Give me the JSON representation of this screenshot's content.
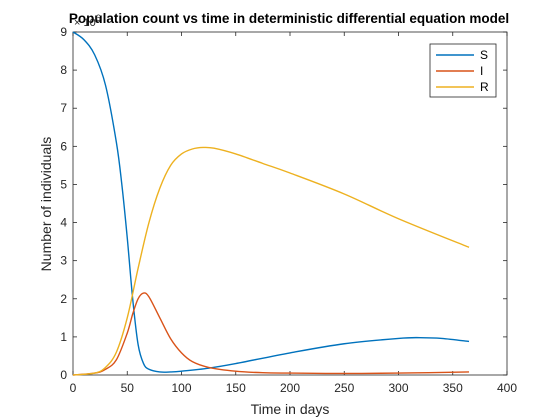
{
  "chart_data": {
    "type": "line",
    "title": "Population count vs time in deterministic differential equation model",
    "xlabel": "Time in days",
    "ylabel": "Number of individuals",
    "xlim": [
      0,
      400
    ],
    "ylim": [
      0,
      9
    ],
    "xticks": [
      0,
      50,
      100,
      150,
      200,
      250,
      300,
      350,
      400
    ],
    "yticks": [
      0,
      1,
      2,
      3,
      4,
      5,
      6,
      7,
      8,
      9
    ],
    "y_multiplier_text": "× 10",
    "y_multiplier_exponent": "6",
    "grid": false,
    "legend_position": "top-right",
    "series": [
      {
        "name": "S",
        "color": "#0072BD",
        "x": [
          0,
          10,
          20,
          30,
          40,
          45,
          50,
          55,
          60,
          65,
          70,
          80,
          90,
          100,
          125,
          150,
          200,
          250,
          300,
          320,
          340,
          365
        ],
        "y": [
          9.0,
          8.8,
          8.4,
          7.6,
          6.1,
          5.0,
          3.6,
          2.0,
          0.8,
          0.3,
          0.15,
          0.08,
          0.08,
          0.1,
          0.18,
          0.3,
          0.58,
          0.82,
          0.96,
          0.98,
          0.96,
          0.88
        ]
      },
      {
        "name": "I",
        "color": "#D95319",
        "x": [
          0,
          20,
          30,
          40,
          50,
          55,
          60,
          65,
          70,
          80,
          90,
          100,
          110,
          125,
          150,
          175,
          200,
          250,
          300,
          365
        ],
        "y": [
          0.0,
          0.05,
          0.15,
          0.4,
          1.1,
          1.6,
          2.0,
          2.15,
          2.05,
          1.5,
          0.95,
          0.58,
          0.35,
          0.2,
          0.1,
          0.06,
          0.05,
          0.04,
          0.05,
          0.08
        ]
      },
      {
        "name": "R",
        "color": "#EDB120",
        "x": [
          0,
          20,
          30,
          40,
          50,
          60,
          70,
          80,
          90,
          100,
          110,
          120,
          130,
          150,
          175,
          200,
          250,
          300,
          365
        ],
        "y": [
          0.0,
          0.05,
          0.2,
          0.6,
          1.5,
          2.8,
          4.0,
          4.9,
          5.5,
          5.8,
          5.93,
          5.97,
          5.95,
          5.8,
          5.55,
          5.3,
          4.75,
          4.1,
          3.35
        ]
      }
    ]
  }
}
